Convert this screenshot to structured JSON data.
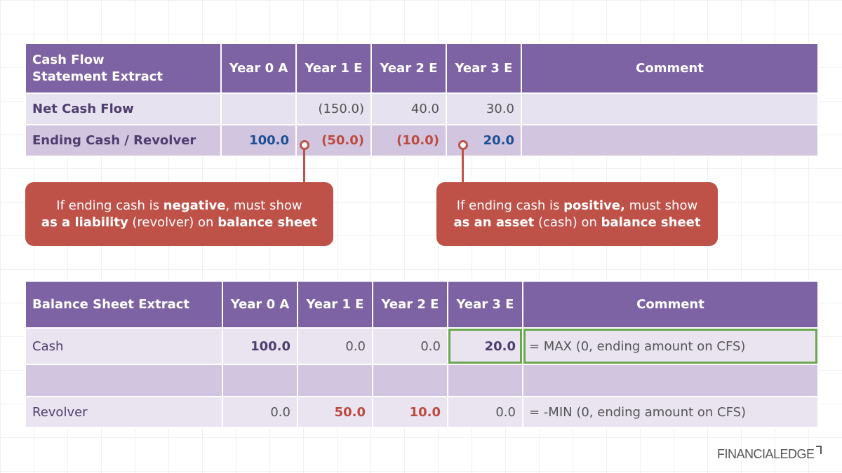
{
  "cfs": {
    "headers": [
      "Cash Flow\nStatement Extract",
      "Year 0 A",
      "Year 1 E",
      "Year 2 E",
      "Year 3 E",
      "Comment"
    ],
    "rows": [
      {
        "label": "Net Cash Flow",
        "values": [
          "",
          "(150.0)",
          "40.0",
          "30.0"
        ],
        "comment": ""
      },
      {
        "label": "Ending Cash / Revolver",
        "values": [
          "100.0",
          "(50.0)",
          "(10.0)",
          "20.0"
        ],
        "comment": ""
      }
    ]
  },
  "callouts": {
    "negative": {
      "p1": "If ending cash is ",
      "b1": "negative",
      "p2": ", must show",
      "b2": "as a liability",
      "p3": " (revolver) on ",
      "b3": "balance sheet"
    },
    "positive": {
      "p1": "If ending cash is ",
      "b1": "positive,",
      "p2": " must show",
      "b2": "as an asset",
      "p3": " (cash) on ",
      "b3": "balance sheet"
    }
  },
  "bs": {
    "headers": [
      "Balance Sheet Extract",
      "Year 0 A",
      "Year 1 E",
      "Year 2 E",
      "Year 3 E",
      "Comment"
    ],
    "rows": [
      {
        "label": "Cash",
        "values": [
          "100.0",
          "0.0",
          "0.0",
          "20.0"
        ],
        "comment": "= MAX (0, ending amount on CFS)"
      },
      {
        "label": "",
        "values": [
          "",
          "",
          "",
          ""
        ],
        "comment": ""
      },
      {
        "label": "Revolver",
        "values": [
          "0.0",
          "50.0",
          "10.0",
          "0.0"
        ],
        "comment": "= -MIN (0, ending amount on CFS)"
      }
    ]
  },
  "logo": {
    "text": "FINANCIALEDGE"
  },
  "colors": {
    "header": "#7d63a3",
    "callout": "#be5249",
    "positive": "#1c4f93",
    "negative": "#bc4a3f",
    "highlight": "#6aa84f"
  }
}
